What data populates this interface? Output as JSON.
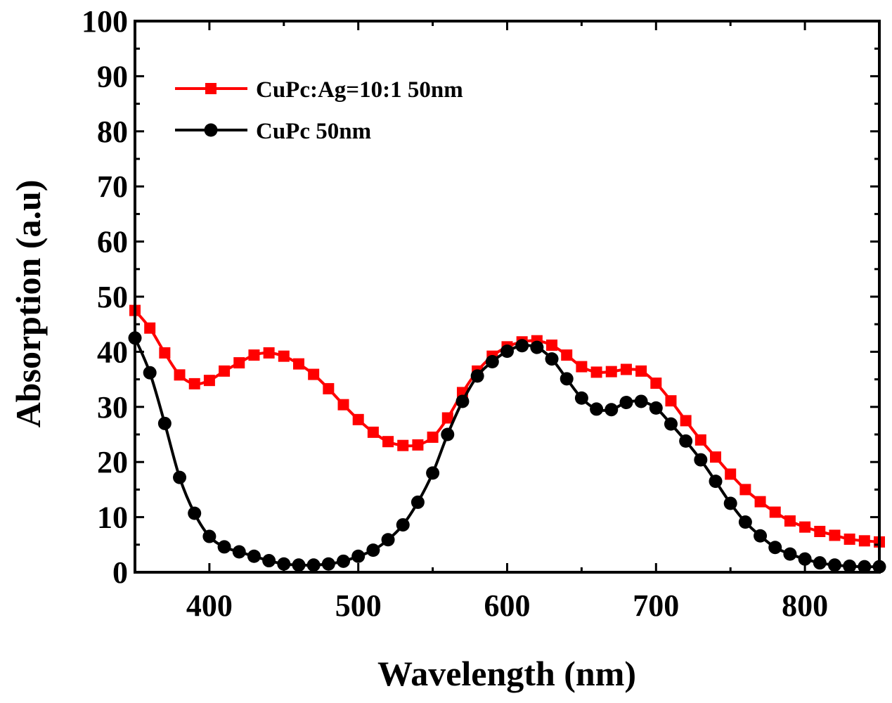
{
  "chart_data": {
    "type": "line",
    "xlabel": "Wavelength (nm)",
    "ylabel": "Absorption    (a.u)",
    "xlim": [
      350,
      850
    ],
    "ylim": [
      0,
      100
    ],
    "xticks": [
      400,
      500,
      600,
      700,
      800
    ],
    "yticks": [
      0,
      10,
      20,
      30,
      40,
      50,
      60,
      70,
      80,
      90,
      100
    ],
    "legend_position": "top-left",
    "grid": false,
    "series": [
      {
        "name": "CuPc:Ag=10:1 50nm",
        "color": "#ff0000",
        "marker": "square",
        "x": [
          350,
          360,
          370,
          380,
          390,
          400,
          410,
          420,
          430,
          440,
          450,
          460,
          470,
          480,
          490,
          500,
          510,
          520,
          530,
          540,
          550,
          560,
          570,
          580,
          590,
          600,
          610,
          620,
          630,
          640,
          650,
          660,
          670,
          680,
          690,
          700,
          710,
          720,
          730,
          740,
          750,
          760,
          770,
          780,
          790,
          800,
          810,
          820,
          830,
          840,
          850
        ],
        "y": [
          47.5,
          44.3,
          39.8,
          35.8,
          34.2,
          34.8,
          36.5,
          38.0,
          39.4,
          39.8,
          39.2,
          37.8,
          35.9,
          33.3,
          30.4,
          27.7,
          25.4,
          23.7,
          23.0,
          23.1,
          24.5,
          28.0,
          32.6,
          36.5,
          39.2,
          40.9,
          41.8,
          42.0,
          41.2,
          39.4,
          37.3,
          36.3,
          36.4,
          36.8,
          36.5,
          34.3,
          31.1,
          27.5,
          24.0,
          20.9,
          17.8,
          15.0,
          12.8,
          10.9,
          9.3,
          8.2,
          7.4,
          6.7,
          6.0,
          5.7,
          5.5
        ]
      },
      {
        "name": "CuPc 50nm",
        "color": "#000000",
        "marker": "circle",
        "x": [
          350,
          360,
          370,
          380,
          390,
          400,
          410,
          420,
          430,
          440,
          450,
          460,
          470,
          480,
          490,
          500,
          510,
          520,
          530,
          540,
          550,
          560,
          570,
          580,
          590,
          600,
          610,
          620,
          630,
          640,
          650,
          660,
          670,
          680,
          690,
          700,
          710,
          720,
          730,
          740,
          750,
          760,
          770,
          780,
          790,
          800,
          810,
          820,
          830,
          840,
          850
        ],
        "y": [
          42.5,
          36.2,
          27.0,
          17.2,
          10.7,
          6.5,
          4.6,
          3.7,
          2.9,
          2.1,
          1.5,
          1.3,
          1.3,
          1.5,
          2.0,
          2.9,
          4.0,
          5.9,
          8.6,
          12.7,
          18.0,
          25.0,
          31.0,
          35.6,
          38.2,
          40.1,
          41.1,
          40.8,
          38.7,
          35.1,
          31.6,
          29.6,
          29.5,
          30.8,
          31.0,
          29.8,
          26.9,
          23.8,
          20.4,
          16.5,
          12.5,
          9.1,
          6.6,
          4.5,
          3.3,
          2.4,
          1.7,
          1.3,
          1.1,
          1.0,
          1.0
        ]
      }
    ]
  }
}
